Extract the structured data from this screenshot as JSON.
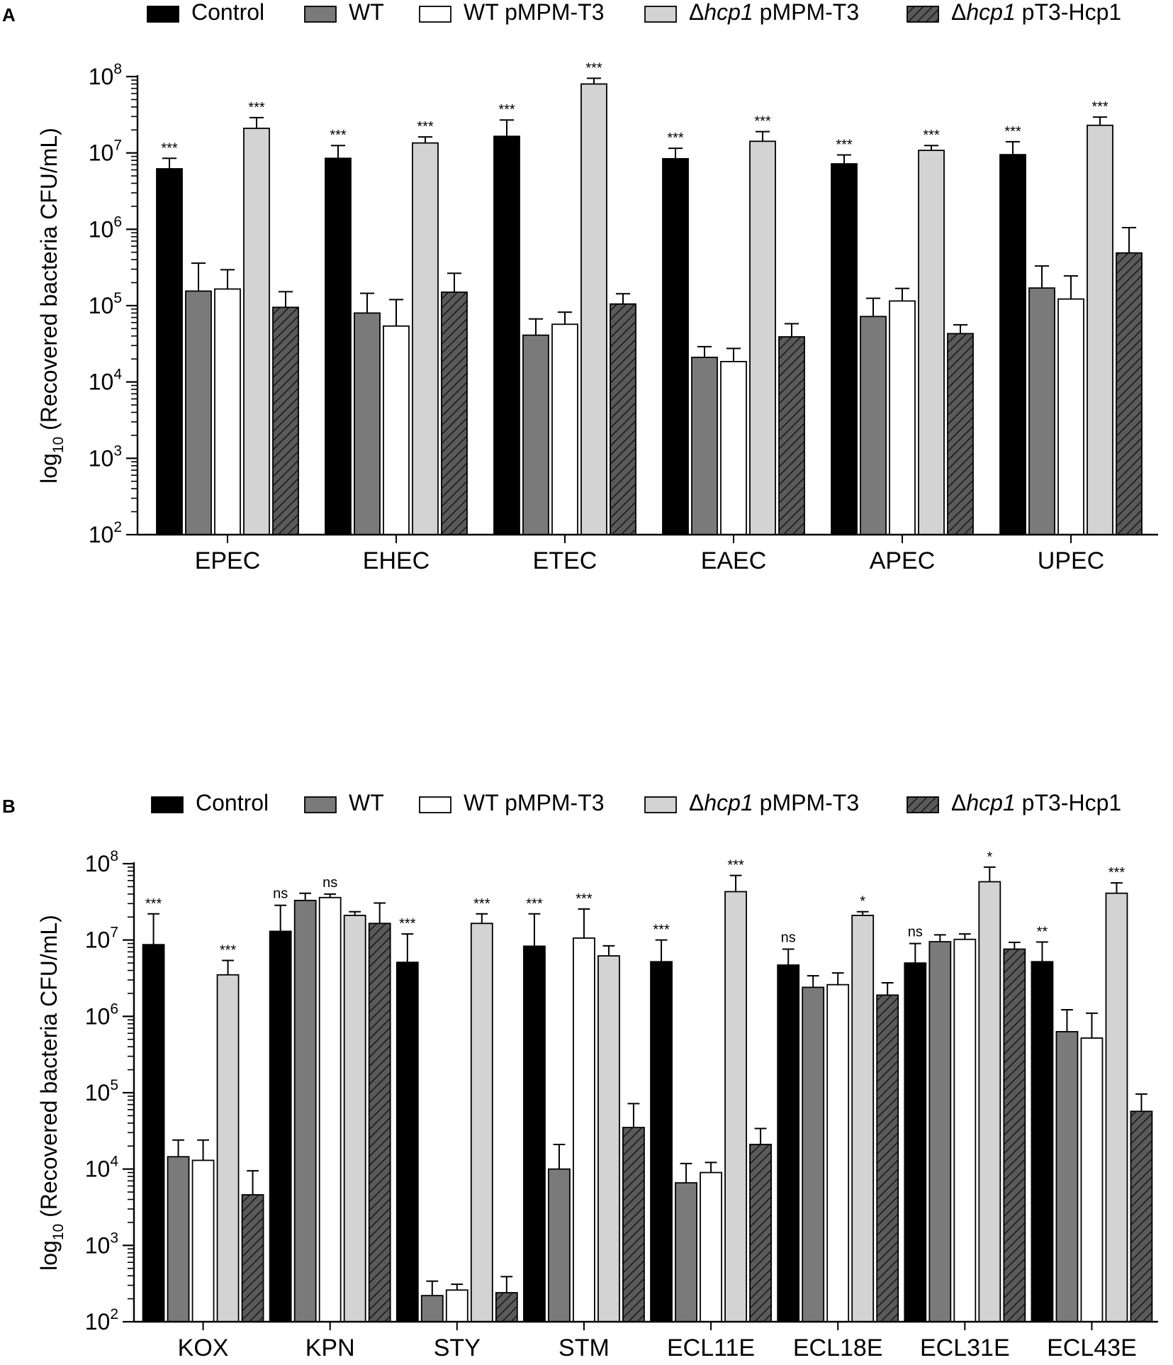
{
  "legend": [
    {
      "key": "control",
      "prefix": "",
      "italic": "",
      "suffix": "Control",
      "fill": "#000000",
      "pattern": false
    },
    {
      "key": "wt",
      "prefix": "",
      "italic": "",
      "suffix": "WT",
      "fill": "#7a7a7a",
      "pattern": false
    },
    {
      "key": "wt_pmpm",
      "prefix": "",
      "italic": "",
      "suffix": "WT pMPM-T3",
      "fill": "#ffffff",
      "pattern": false
    },
    {
      "key": "dhcp1_pmpm",
      "prefix": "Δ",
      "italic": "hcp1",
      "suffix": " pMPM-T3",
      "fill": "#d3d3d3",
      "pattern": false
    },
    {
      "key": "dhcp1_pt3",
      "prefix": "Δ",
      "italic": "hcp1",
      "suffix": " pT3-Hcp1",
      "fill": "#5a5a5a",
      "pattern": true
    }
  ],
  "chart_data": [
    {
      "panel": "A",
      "type": "bar",
      "yscale": "log",
      "ylabel": {
        "prefix": "log",
        "sub": "10",
        "rest": " (Recovered bacteria CFU/mL)"
      },
      "ylim_exp": [
        2,
        8
      ],
      "yticks": [
        {
          "base": "10",
          "exp": "2"
        },
        {
          "base": "10",
          "exp": "3"
        },
        {
          "base": "10",
          "exp": "4"
        },
        {
          "base": "10",
          "exp": "5"
        },
        {
          "base": "10",
          "exp": "6"
        },
        {
          "base": "10",
          "exp": "7"
        },
        {
          "base": "10",
          "exp": "8"
        }
      ],
      "categories": [
        "EPEC",
        "EHEC",
        "ETEC",
        "EAEC",
        "APEC",
        "UPEC"
      ],
      "series": [
        {
          "name": "Control",
          "values": [
            6200000.0,
            8500000.0,
            16500000.0,
            8400000.0,
            7200000.0,
            9500000.0
          ],
          "errors": [
            8500000.0,
            12500000.0,
            27000000.0,
            11500000.0,
            9400000.0,
            14000000.0
          ]
        },
        {
          "name": "WT",
          "values": [
            155000.0,
            80000.0,
            41000.0,
            21000.0,
            72000.0,
            170000.0
          ],
          "errors": [
            360000.0,
            145000.0,
            67000.0,
            29000.0,
            125000.0,
            330000.0
          ]
        },
        {
          "name": "WT pMPM-T3",
          "values": [
            165000.0,
            54000.0,
            57000.0,
            18500.0,
            115000.0,
            122000.0
          ],
          "errors": [
            295000.0,
            120000.0,
            82000.0,
            27500.0,
            168000.0,
            245000.0
          ]
        },
        {
          "name": "Δhcp1 pMPM-T3",
          "values": [
            21000000.0,
            13500000.0,
            80000000.0,
            14200000.0,
            10800000.0,
            23000000.0
          ],
          "errors": [
            29000000.0,
            16200000.0,
            95000000.0,
            19000000.0,
            12500000.0,
            29500000.0
          ]
        },
        {
          "name": "Δhcp1 pT3-Hcp1",
          "values": [
            95000.0,
            150000.0,
            105000.0,
            39000.0,
            43000.0,
            490000.0
          ],
          "errors": [
            152000.0,
            265000.0,
            143000.0,
            58000.0,
            56000.0,
            1050000.0
          ]
        }
      ],
      "annotations": [
        {
          "category": 0,
          "series": 0,
          "text": "***"
        },
        {
          "category": 0,
          "series": 3,
          "text": "***"
        },
        {
          "category": 1,
          "series": 0,
          "text": "***"
        },
        {
          "category": 1,
          "series": 3,
          "text": "***"
        },
        {
          "category": 2,
          "series": 0,
          "text": "***"
        },
        {
          "category": 2,
          "series": 3,
          "text": "***"
        },
        {
          "category": 3,
          "series": 0,
          "text": "***"
        },
        {
          "category": 3,
          "series": 3,
          "text": "***"
        },
        {
          "category": 4,
          "series": 0,
          "text": "***"
        },
        {
          "category": 4,
          "series": 3,
          "text": "***"
        },
        {
          "category": 5,
          "series": 0,
          "text": "***"
        },
        {
          "category": 5,
          "series": 3,
          "text": "***"
        }
      ]
    },
    {
      "panel": "B",
      "type": "bar",
      "yscale": "log",
      "ylabel": {
        "prefix": "log",
        "sub": "10",
        "rest": " (Recovered bacteria CFU/mL)"
      },
      "ylim_exp": [
        2,
        8
      ],
      "yticks": [
        {
          "base": "10",
          "exp": "2"
        },
        {
          "base": "10",
          "exp": "3"
        },
        {
          "base": "10",
          "exp": "4"
        },
        {
          "base": "10",
          "exp": "5"
        },
        {
          "base": "10",
          "exp": "6"
        },
        {
          "base": "10",
          "exp": "7"
        },
        {
          "base": "10",
          "exp": "8"
        }
      ],
      "categories": [
        "KOX",
        "KPN",
        "STY",
        "STM",
        "ECL11E",
        "ECL18E",
        "ECL31E",
        "ECL43E"
      ],
      "series": [
        {
          "name": "Control",
          "values": [
            8700000.0,
            13000000.0,
            5100000.0,
            8300000.0,
            5200000.0,
            4700000.0,
            5000000.0,
            5200000.0
          ],
          "errors": [
            22000000.0,
            28500000.0,
            12000000.0,
            22000000.0,
            10000000.0,
            7600000.0,
            9000000.0,
            9400000.0
          ]
        },
        {
          "name": "WT",
          "values": [
            14500.0,
            33000000.0,
            220,
            10000.0,
            6600.0,
            2400000.0,
            9500000.0,
            630000.0
          ],
          "errors": [
            24000.0,
            41000000.0,
            340,
            21000.0,
            11800.0,
            3400000.0,
            11700000.0,
            1220000.0
          ]
        },
        {
          "name": "WT pMPM-T3",
          "values": [
            13000.0,
            36000000.0,
            260,
            10600000.0,
            9000.0,
            2600000.0,
            10200000.0,
            520000.0
          ],
          "errors": [
            24000.0,
            40000000.0,
            310,
            25500000.0,
            12200.0,
            3700000.0,
            12000000.0,
            1100000.0
          ]
        },
        {
          "name": "Δhcp1 pMPM-T3",
          "values": [
            3500000.0,
            21000000.0,
            16500000.0,
            6200000.0,
            43000000.0,
            21000000.0,
            58000000.0,
            41000000.0
          ],
          "errors": [
            5400000.0,
            23500000.0,
            22000000.0,
            8400000.0,
            70000000.0,
            23500000.0,
            90000000.0,
            56000000.0
          ]
        },
        {
          "name": "Δhcp1 pT3-Hcp1",
          "values": [
            4600.0,
            16500000.0,
            240,
            35000.0,
            21000.0,
            1900000.0,
            7600000.0,
            57000.0
          ],
          "errors": [
            9500.0,
            30500000.0,
            390,
            72000.0,
            34000.0,
            2750000.0,
            9300000.0,
            96000.0
          ]
        }
      ],
      "annotations": [
        {
          "category": 0,
          "series": 0,
          "text": "***"
        },
        {
          "category": 0,
          "series": 3,
          "text": "***"
        },
        {
          "category": 1,
          "series": 0,
          "text": "ns"
        },
        {
          "category": 1,
          "series": 2,
          "text": "ns"
        },
        {
          "category": 2,
          "series": 0,
          "text": "***"
        },
        {
          "category": 2,
          "series": 3,
          "text": "***"
        },
        {
          "category": 3,
          "series": 0,
          "text": "***"
        },
        {
          "category": 3,
          "series": 2,
          "text": "***"
        },
        {
          "category": 4,
          "series": 0,
          "text": "***"
        },
        {
          "category": 4,
          "series": 3,
          "text": "***"
        },
        {
          "category": 5,
          "series": 0,
          "text": "ns"
        },
        {
          "category": 5,
          "series": 3,
          "text": "*"
        },
        {
          "category": 6,
          "series": 0,
          "text": "ns"
        },
        {
          "category": 6,
          "series": 3,
          "text": "*"
        },
        {
          "category": 7,
          "series": 0,
          "text": "**"
        },
        {
          "category": 7,
          "series": 3,
          "text": "***"
        }
      ]
    }
  ]
}
